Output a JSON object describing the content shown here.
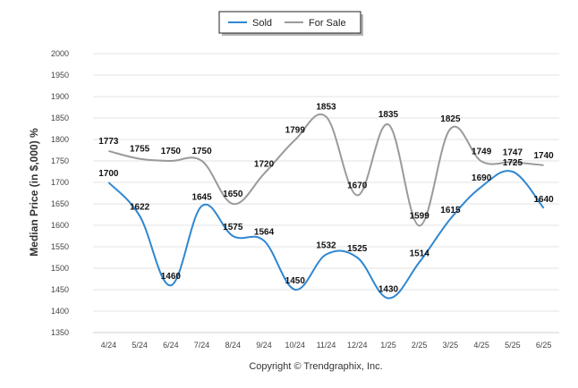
{
  "chart_data": {
    "type": "line",
    "categories": [
      "4/24",
      "5/24",
      "6/24",
      "7/24",
      "8/24",
      "9/24",
      "10/24",
      "11/24",
      "12/24",
      "1/25",
      "2/25",
      "3/25",
      "4/25",
      "5/25",
      "6/25"
    ],
    "series": [
      {
        "name": "Sold",
        "color": "#2f87d1",
        "values": [
          1700,
          1622,
          1460,
          1645,
          1575,
          1564,
          1450,
          1532,
          1525,
          1430,
          1514,
          1615,
          1690,
          1725,
          1640
        ]
      },
      {
        "name": "For Sale",
        "color": "#9a9a9a",
        "values": [
          1773,
          1755,
          1750,
          1750,
          1650,
          1720,
          1799,
          1853,
          1670,
          1835,
          1599,
          1825,
          1749,
          1747,
          1740
        ]
      }
    ],
    "ylabel": "Median Price (in $,000) %",
    "xlabel": "",
    "ylim": [
      1350,
      2000
    ],
    "yticks": [
      1350,
      1400,
      1450,
      1500,
      1550,
      1600,
      1650,
      1700,
      1750,
      1800,
      1850,
      1900,
      1950,
      2000
    ],
    "grid": true,
    "legend_position": "top-center"
  },
  "footer": "Copyright © Trendgraphix, Inc."
}
